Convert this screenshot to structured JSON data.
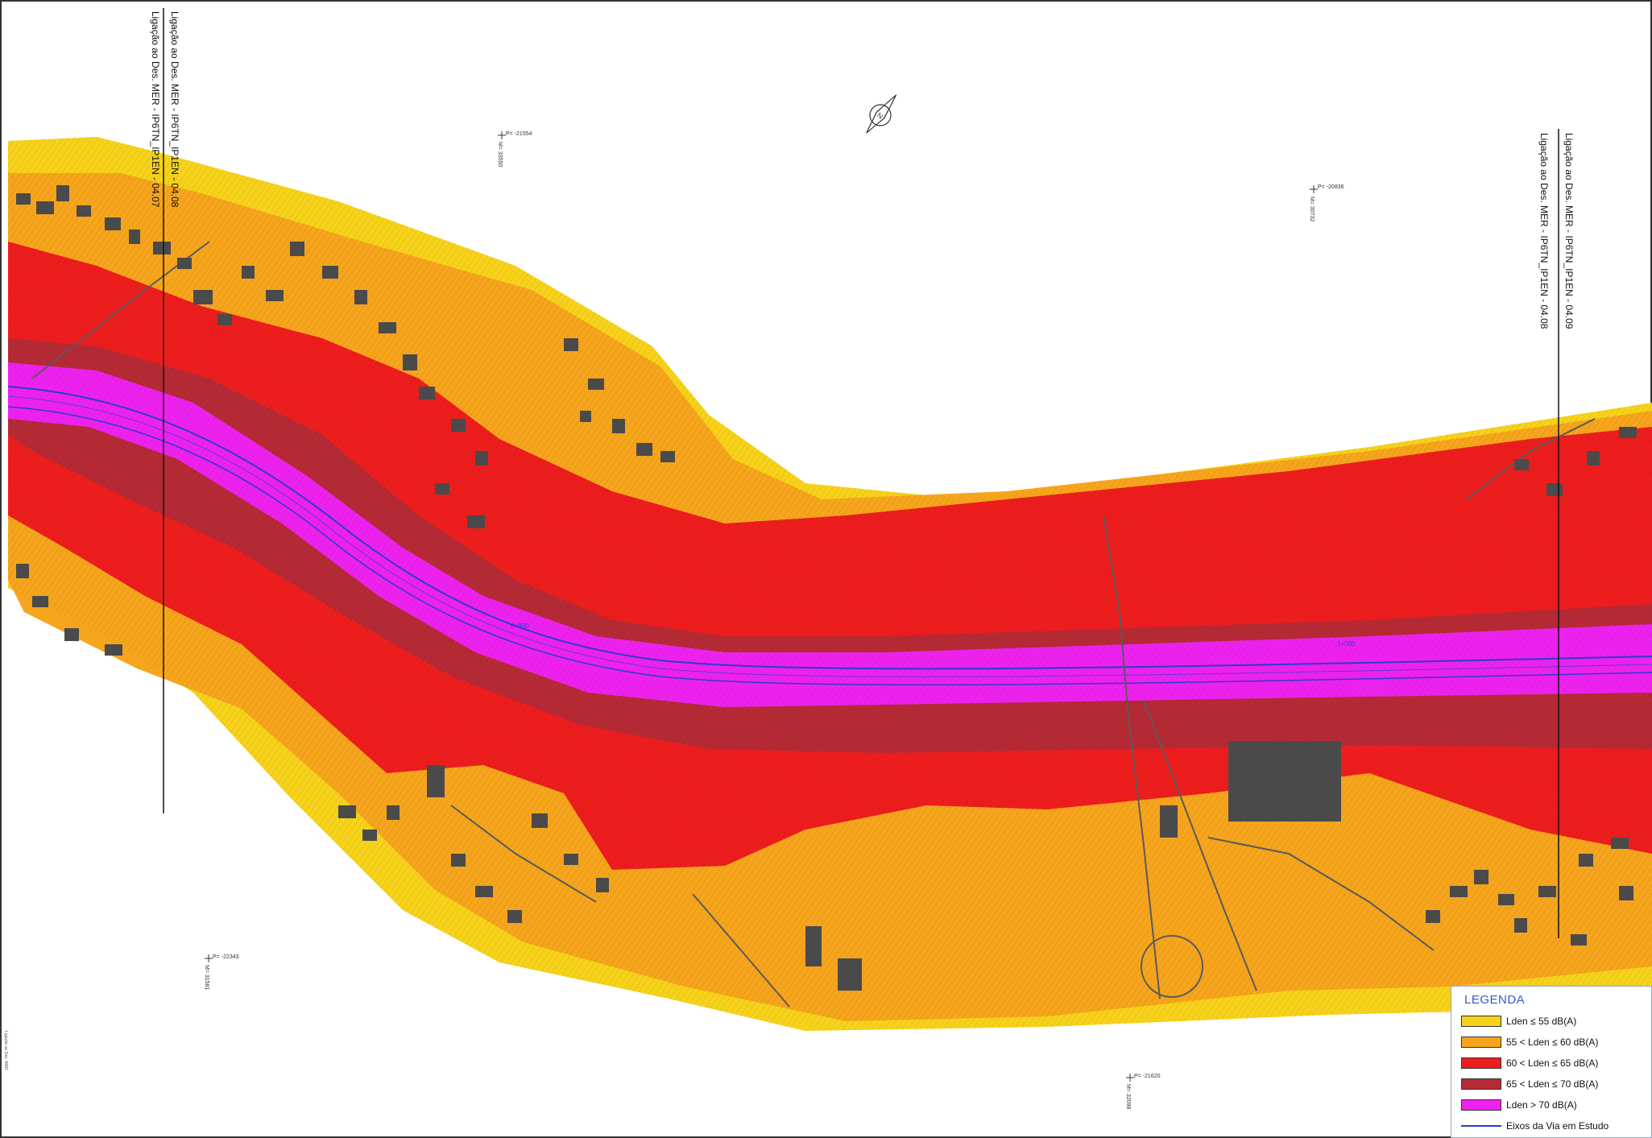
{
  "colors": {
    "zone_le55": "#f7d21b",
    "zone_55_60": "#f6a51c",
    "zone_60_65": "#ee1d1d",
    "zone_65_70": "#b52a35",
    "zone_gt70": "#ee22ee",
    "road_axis": "#2b3bd4",
    "buildings": "#4a4a4a",
    "legend_title": "#3a58c8"
  },
  "sheet_labels": {
    "left_a": "Ligação ao Des. MER - IP6TN_IP1EN - 04.08",
    "left_b": "Ligação ao Des. MER - IP6TN_IP1EN - 04.07",
    "right_a": "Ligação ao Des. MER - IP6TN_IP1EN - 04.09",
    "right_b": "Ligação ao Des. MER - IP6TN_IP1EN - 04.08"
  },
  "north_arrow": {
    "letter": "N"
  },
  "coordinates": [
    {
      "x_label": "P= -21554",
      "y_label": "M= 33550"
    },
    {
      "x_label": "P= -20836",
      "y_label": "M= 30732"
    },
    {
      "x_label": "P= -22343",
      "y_label": "M= 31581"
    },
    {
      "x_label": "P= -21620",
      "y_label": "M= 32098"
    }
  ],
  "chainage_labels": [
    "0+900",
    "1+000"
  ],
  "side_strip": "Ligação ao Des. MER",
  "legend": {
    "title": "LEGENDA",
    "items": [
      {
        "label": "Lden ≤ 55 dB(A)",
        "color": "#f7d21b",
        "kind": "swatch"
      },
      {
        "label": "55 < Lden ≤ 60 dB(A)",
        "color": "#f6a51c",
        "kind": "swatch"
      },
      {
        "label": "60 < Lden ≤ 65 dB(A)",
        "color": "#ee1d1d",
        "kind": "swatch"
      },
      {
        "label": "65 < Lden ≤ 70 dB(A)",
        "color": "#b52a35",
        "kind": "swatch"
      },
      {
        "label": "Lden > 70 dB(A)",
        "color": "#ee22ee",
        "kind": "swatch"
      },
      {
        "label": "Eixos da Via em Estudo",
        "color": "#2b3bd4",
        "kind": "line"
      }
    ]
  }
}
